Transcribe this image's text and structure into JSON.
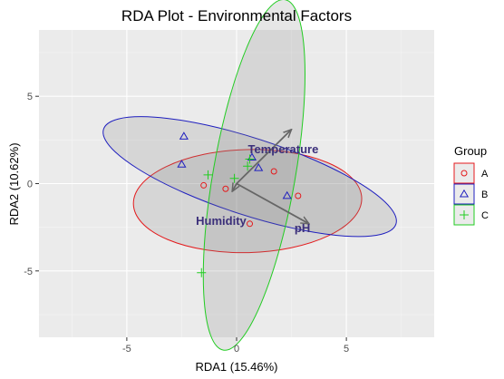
{
  "chart_data": {
    "type": "scatter",
    "title": "RDA Plot - Environmental Factors",
    "xlabel": "RDA1 (15.46%)",
    "ylabel": "RDA2 (10.62%)",
    "xlim": [
      -9.0,
      9.0
    ],
    "ylim": [
      -8.8,
      8.8
    ],
    "xticks": [
      -5,
      0,
      5
    ],
    "yticks": [
      -5,
      0,
      5
    ],
    "grid": true,
    "legend": {
      "title": "Group",
      "position": "right"
    },
    "series": [
      {
        "name": "A",
        "marker": "circle",
        "color": "#e41a1c",
        "points": [
          [
            -1.5,
            -0.1
          ],
          [
            -0.5,
            -0.3
          ],
          [
            0.6,
            -2.3
          ],
          [
            1.7,
            0.7
          ],
          [
            2.8,
            -0.7
          ]
        ],
        "ellipse": {
          "center": [
            0.5,
            -1.0
          ],
          "rx": 5.2,
          "ry": 2.95,
          "angle_deg": 1.5
        }
      },
      {
        "name": "B",
        "marker": "triangle",
        "color": "#1f1fbf",
        "points": [
          [
            -2.4,
            2.7
          ],
          [
            -2.5,
            1.1
          ],
          [
            0.7,
            1.5
          ],
          [
            1.0,
            0.9
          ],
          [
            2.3,
            -0.7
          ]
        ],
        "ellipse": {
          "center": [
            0.6,
            0.4
          ],
          "rx": 7.0,
          "ry": 2.2,
          "angle_deg": -18
        }
      },
      {
        "name": "C",
        "marker": "plus",
        "color": "#22cc22",
        "points": [
          [
            -1.3,
            0.5
          ],
          [
            -0.1,
            0.3
          ],
          [
            0.5,
            1.0
          ],
          [
            0.6,
            1.4
          ],
          [
            -1.6,
            -5.1
          ]
        ],
        "ellipse": {
          "center": [
            0.8,
            0.5
          ],
          "rx": 8.1,
          "ry": 2.35,
          "angle_deg": 80
        }
      }
    ],
    "arrows": [
      {
        "label": "Temperature",
        "x": 2.5,
        "y": 3.1
      },
      {
        "label": "pH",
        "x": 3.3,
        "y": -2.3
      },
      {
        "label": "Humidity",
        "x": -0.2,
        "y": -0.45
      }
    ],
    "arrow_label_color": "#3b2f7a",
    "arrow_color": "#666666"
  }
}
